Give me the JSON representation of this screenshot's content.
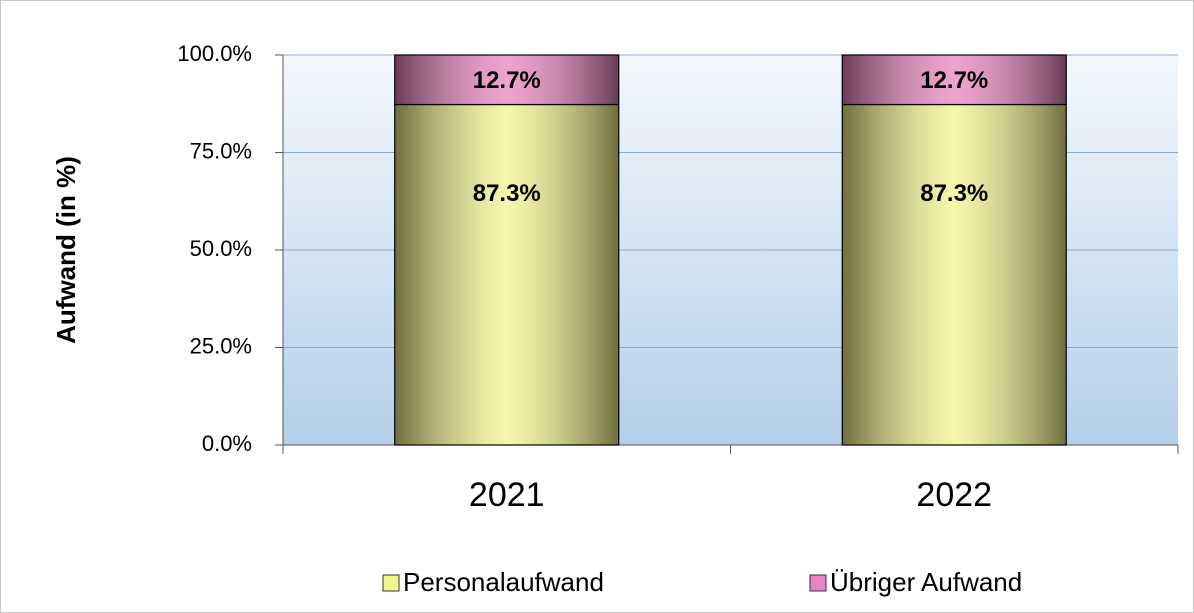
{
  "chart_data": {
    "type": "stacked_bar",
    "y_label": "Aufwand (in %)",
    "categories": [
      "2021",
      "2022"
    ],
    "series": [
      {
        "name": "Personalaufwand",
        "color": "#f4f48c",
        "values": [
          87.3,
          87.3
        ],
        "value_labels": [
          "87.3%",
          "87.3%"
        ]
      },
      {
        "name": "Übriger Aufwand",
        "color": "#ea84c0",
        "values": [
          12.7,
          12.7
        ],
        "value_labels": [
          "12.7%",
          "12.7%"
        ]
      }
    ],
    "ylim": [
      0,
      100
    ],
    "yticks": [
      {
        "value": 0,
        "label": "0.0%"
      },
      {
        "value": 25,
        "label": "25.0%"
      },
      {
        "value": 50,
        "label": "50.0%"
      },
      {
        "value": 75,
        "label": "75.0%"
      },
      {
        "value": 100,
        "label": "100.0%"
      }
    ],
    "grid": true,
    "legend": "bottom"
  }
}
